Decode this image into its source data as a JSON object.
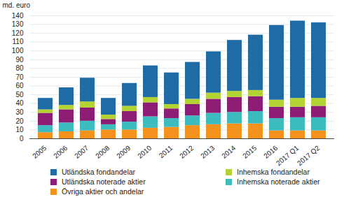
{
  "chart_data": {
    "type": "bar",
    "stacked": true,
    "grid": true,
    "y_label": "md. euro",
    "categories": [
      "2005",
      "2006",
      "2007",
      "2008",
      "2009",
      "2010",
      "2011",
      "2012",
      "2013",
      "2014",
      "2015",
      "2016",
      "2017 Q1",
      "2017 Q2"
    ],
    "ylim": [
      0,
      140
    ],
    "yticks": [
      0,
      10,
      20,
      30,
      40,
      50,
      60,
      70,
      80,
      90,
      100,
      110,
      120,
      130,
      140
    ],
    "series": [
      {
        "name": "Utländska fondandelar",
        "color": "#1f6ba5",
        "values": [
          13,
          20,
          27,
          19,
          26,
          36,
          36,
          42,
          47,
          58,
          63,
          85,
          88,
          86
        ]
      },
      {
        "name": "Inhemska fondandelar",
        "color": "#b3d334",
        "values": [
          4,
          5,
          7,
          5,
          6,
          6,
          5,
          6,
          7,
          7,
          7,
          8,
          10,
          9
        ]
      },
      {
        "name": "Utländska noterade aktier",
        "color": "#8c1c74",
        "values": [
          14,
          15,
          15,
          6,
          12,
          16,
          11,
          13,
          16,
          17,
          17,
          13,
          12,
          13
        ]
      },
      {
        "name": "Inhemska noterade aktier",
        "color": "#3cbcbf",
        "values": [
          8,
          10,
          11,
          6,
          9,
          13,
          10,
          11,
          13,
          13,
          14,
          14,
          15,
          15
        ]
      },
      {
        "name": "Övriga aktier och andelar",
        "color": "#f5921e",
        "values": [
          7,
          8,
          9,
          10,
          10,
          12,
          13,
          15,
          16,
          17,
          17,
          9,
          9,
          9
        ]
      }
    ]
  }
}
